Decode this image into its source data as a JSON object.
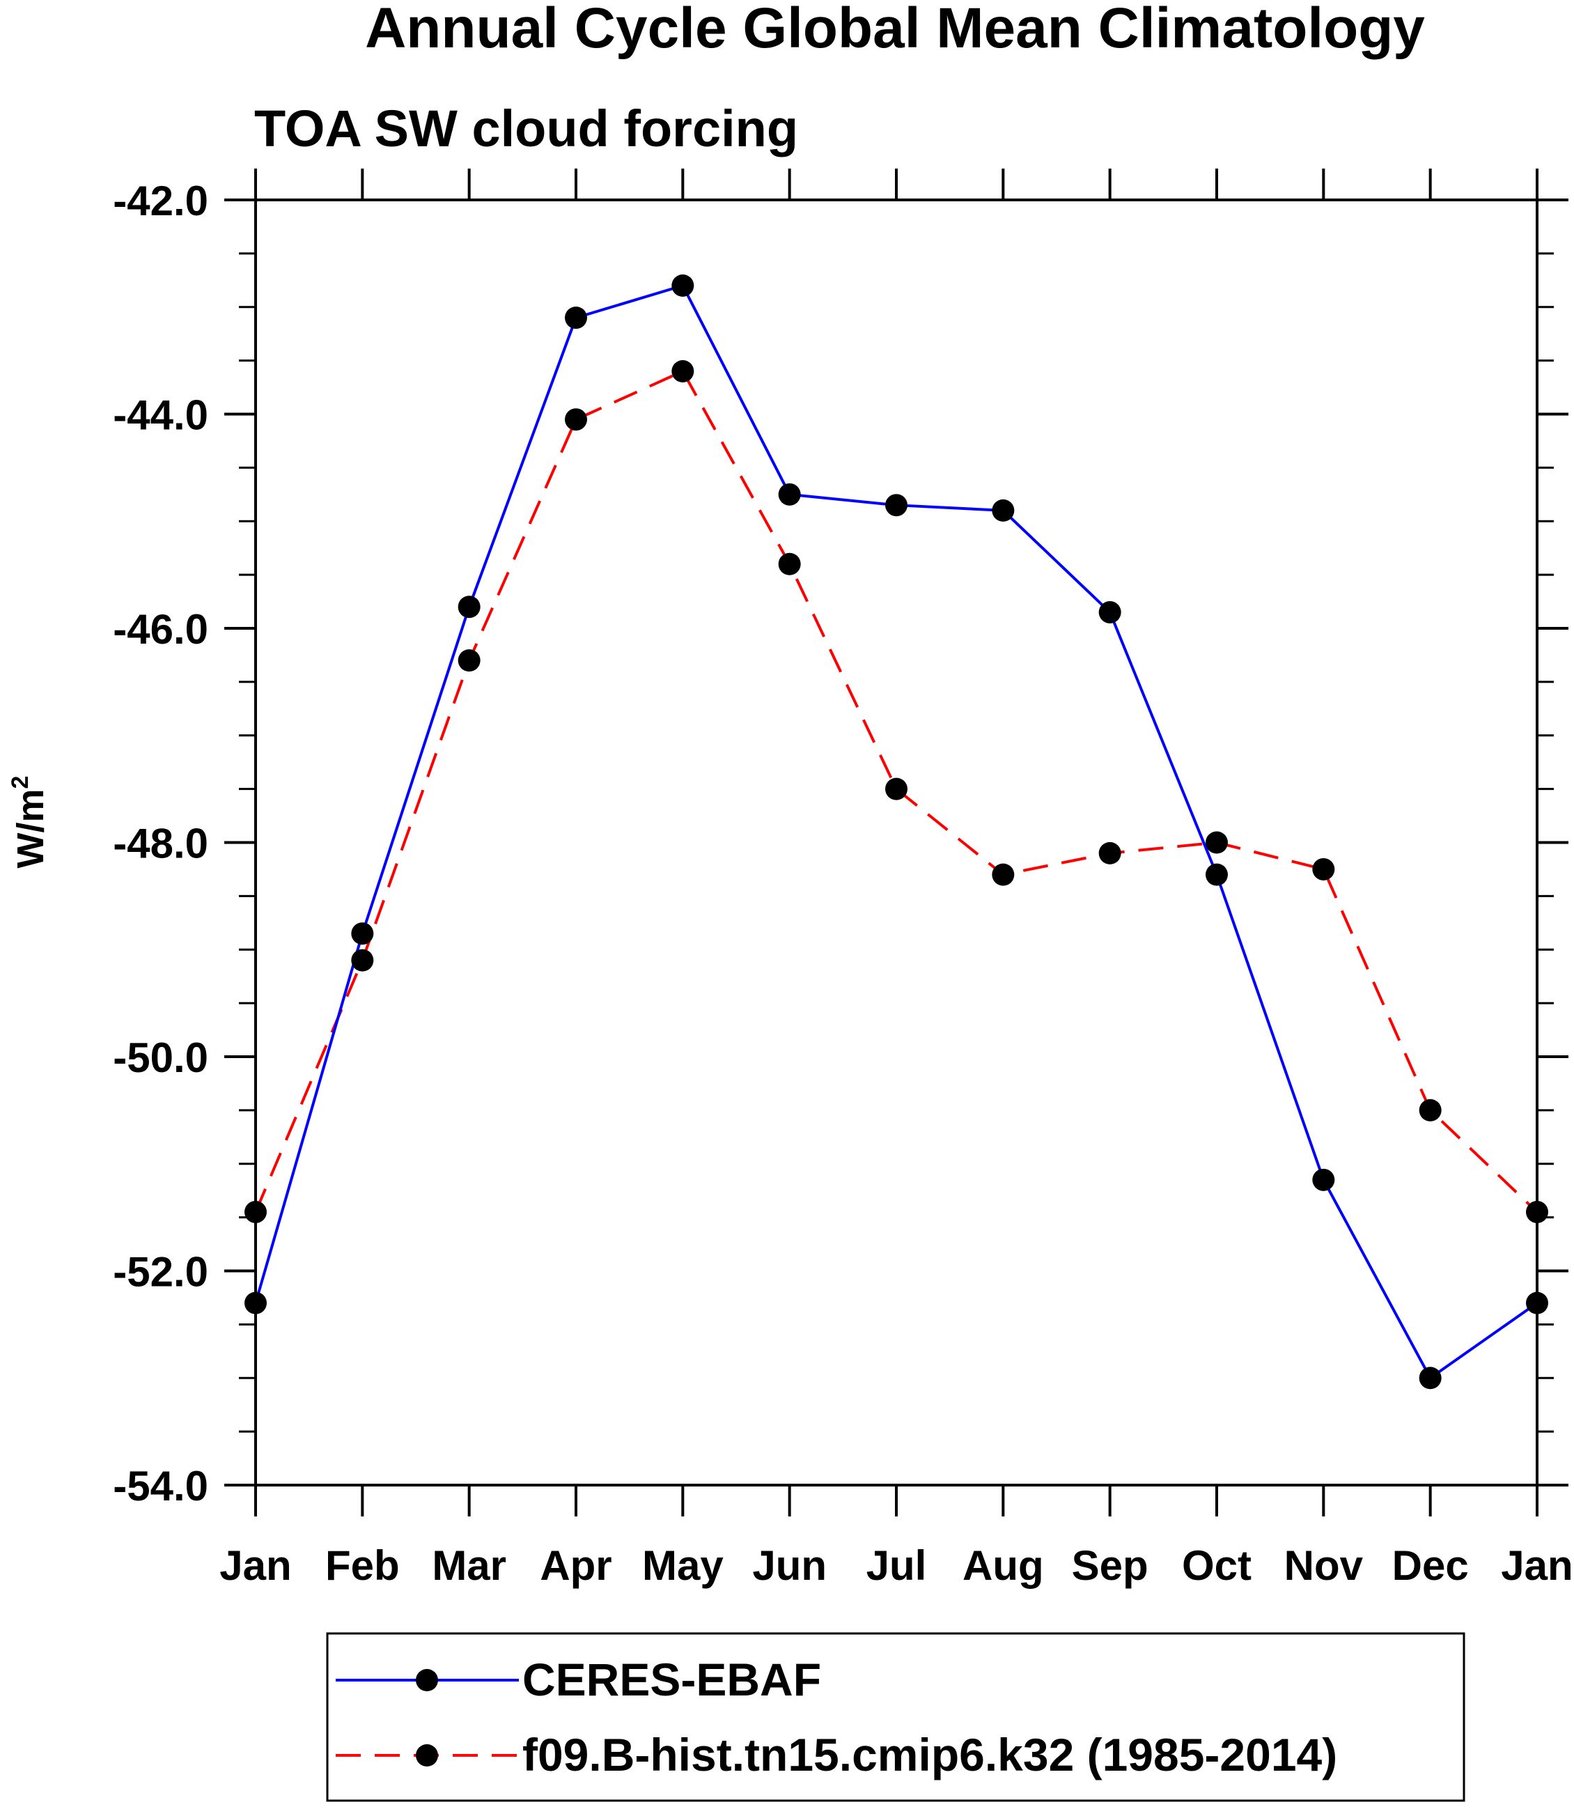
{
  "chart_data": {
    "type": "line",
    "title": "Annual Cycle Global Mean Climatology",
    "subtitle": "TOA SW cloud forcing",
    "ylabel": "W/m",
    "ylabel_superscript": "2",
    "xlabel": "",
    "ylim": [
      -54.0,
      -42.0
    ],
    "yticks": [
      "-42.0",
      "-44.0",
      "-46.0",
      "-48.0",
      "-50.0",
      "-52.0",
      "-54.0"
    ],
    "yminor_step": 0.5,
    "categories": [
      "Jan",
      "Feb",
      "Mar",
      "Apr",
      "May",
      "Jun",
      "Jul",
      "Aug",
      "Sep",
      "Oct",
      "Nov",
      "Dec",
      "Jan"
    ],
    "series": [
      {
        "name": "CERES-EBAF",
        "color": "#0000ff",
        "dash": "solid",
        "marker": "filled-circle",
        "values": [
          -52.3,
          -48.85,
          -45.8,
          -43.1,
          -42.8,
          -44.75,
          -44.85,
          -44.9,
          -45.85,
          -48.3,
          -51.15,
          -53.0,
          -52.3
        ]
      },
      {
        "name": "f09.B-hist.tn15.cmip6.k32 (1985-2014)",
        "color": "#ff0000",
        "dash": "dashed",
        "marker": "filled-circle",
        "values": [
          -51.45,
          -49.1,
          -46.3,
          -44.05,
          -43.6,
          -45.4,
          -47.5,
          -48.3,
          -48.1,
          -48.0,
          -48.25,
          -50.5,
          -51.45
        ]
      }
    ],
    "legend": {
      "placement": "bottom-center",
      "entries": [
        "CERES-EBAF",
        "f09.B-hist.tn15.cmip6.k32 (1985-2014)"
      ]
    },
    "grid": false
  }
}
